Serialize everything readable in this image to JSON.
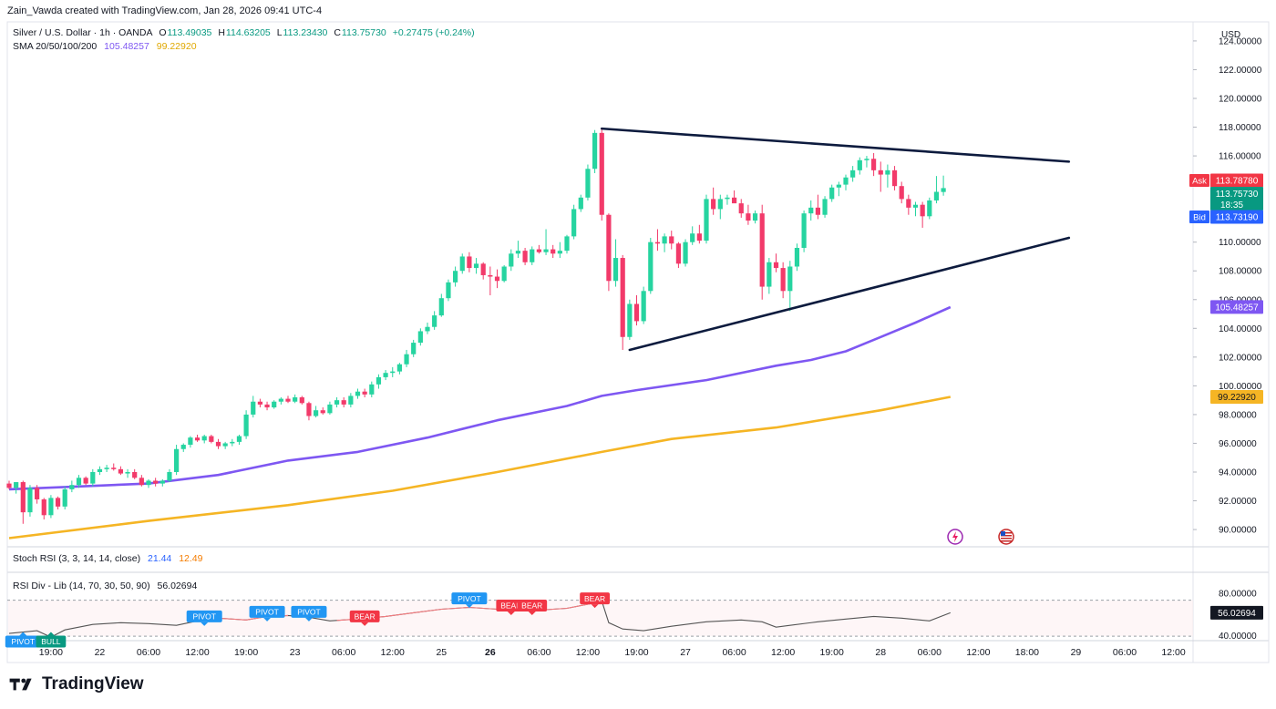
{
  "header": {
    "publisher": "Zain_Vawda created with TradingView.com, Jan 28, 2026 09:41 UTC-4"
  },
  "legend": {
    "symbol": "Silver / U.S. Dollar · 1h · OANDA",
    "open_label": "O",
    "open": "113.49035",
    "high_label": "H",
    "high": "114.63205",
    "low_label": "L",
    "low": "113.23430",
    "close_label": "C",
    "close": "113.75730",
    "change": "+0.27475 (+0.24%)",
    "sma_label": "SMA 20/50/100/200",
    "sma_a": "105.48257",
    "sma_b": "99.22920"
  },
  "currency": "USD",
  "price_tags": {
    "ask_label": "Ask",
    "ask": "113.78780",
    "last": "113.75730",
    "countdown": "18:35",
    "bid_label": "Bid",
    "bid": "113.73190",
    "sma_a": "105.48257",
    "sma_b": "99.22920"
  },
  "colors": {
    "up": "#089981",
    "up_fill": "#26d4a0",
    "down": "#f23645",
    "down_fill": "#f23a6a",
    "sma_a": "#7e57f2",
    "sma_b": "#f5b524",
    "trend": "#0d1b3e",
    "ask": "#f23645",
    "bid": "#2962ff",
    "last": "#089981",
    "pivot": "#2196f3",
    "bear": "#f23645",
    "bull": "#089981",
    "rsi": "#555555",
    "rsi_red": "#f77c80"
  },
  "stoch_rsi": {
    "label": "Stoch RSI (3, 3, 14, 14, close)",
    "k": "21.44",
    "d": "12.49"
  },
  "rsi_div": {
    "label": "RSI Div - Lib (14, 70, 30, 50, 90)",
    "value": "56.02694",
    "axis_upper": "80.00000",
    "axis_lower": "40.00000",
    "pivot_label": "PIVOT",
    "bear_label": "BEAR",
    "bull_label": "BULL"
  },
  "brand": "TradingView",
  "chart_data": {
    "type": "candlestick",
    "title": "Silver / U.S. Dollar · 1h · OANDA",
    "ylim": [
      88.8,
      125.2
    ],
    "y_ticks": [
      "90.00000",
      "92.00000",
      "94.00000",
      "96.00000",
      "98.00000",
      "100.00000",
      "102.00000",
      "104.00000",
      "106.00000",
      "108.00000",
      "110.00000",
      "112.00000",
      "114.00000",
      "116.00000",
      "118.00000",
      "120.00000",
      "122.00000",
      "124.00000"
    ],
    "x_ticks": [
      {
        "label": "19:00",
        "i": 6,
        "bold": false
      },
      {
        "label": "22",
        "i": 13,
        "bold": false
      },
      {
        "label": "06:00",
        "i": 20,
        "bold": false
      },
      {
        "label": "12:00",
        "i": 27,
        "bold": false
      },
      {
        "label": "19:00",
        "i": 34,
        "bold": false
      },
      {
        "label": "23",
        "i": 41,
        "bold": false
      },
      {
        "label": "06:00",
        "i": 48,
        "bold": false
      },
      {
        "label": "12:00",
        "i": 55,
        "bold": false
      },
      {
        "label": "25",
        "i": 62,
        "bold": false
      },
      {
        "label": "26",
        "i": 69,
        "bold": true
      },
      {
        "label": "06:00",
        "i": 76,
        "bold": false
      },
      {
        "label": "12:00",
        "i": 83,
        "bold": false
      },
      {
        "label": "19:00",
        "i": 90,
        "bold": false
      },
      {
        "label": "27",
        "i": 97,
        "bold": false
      },
      {
        "label": "06:00",
        "i": 104,
        "bold": false
      },
      {
        "label": "12:00",
        "i": 111,
        "bold": false
      },
      {
        "label": "19:00",
        "i": 118,
        "bold": false
      },
      {
        "label": "28",
        "i": 125,
        "bold": false
      },
      {
        "label": "06:00",
        "i": 132,
        "bold": false
      },
      {
        "label": "12:00",
        "i": 139,
        "bold": false
      },
      {
        "label": "18:00",
        "i": 146,
        "bold": false
      },
      {
        "label": "29",
        "i": 153,
        "bold": false
      },
      {
        "label": "06:00",
        "i": 160,
        "bold": false
      },
      {
        "label": "12:00",
        "i": 167,
        "bold": false
      }
    ],
    "candles": [
      [
        93.2,
        93.4,
        92.8,
        92.9
      ],
      [
        92.9,
        93.3,
        92.5,
        93.3
      ],
      [
        93.3,
        93.4,
        90.4,
        91.2
      ],
      [
        91.2,
        93.1,
        90.9,
        92.9
      ],
      [
        92.9,
        93.1,
        91.8,
        92.1
      ],
      [
        92.1,
        92.2,
        90.7,
        91.0
      ],
      [
        91.0,
        92.4,
        90.8,
        92.2
      ],
      [
        92.2,
        92.3,
        91.4,
        91.6
      ],
      [
        91.6,
        93.0,
        91.4,
        92.8
      ],
      [
        92.8,
        93.4,
        92.6,
        93.1
      ],
      [
        93.1,
        93.8,
        92.9,
        93.6
      ],
      [
        93.6,
        93.7,
        93.1,
        93.2
      ],
      [
        93.2,
        94.2,
        93.0,
        94.0
      ],
      [
        94.0,
        94.4,
        93.8,
        94.2
      ],
      [
        94.2,
        94.5,
        94.0,
        94.3
      ],
      [
        94.3,
        94.6,
        94.1,
        94.2
      ],
      [
        94.2,
        94.4,
        93.8,
        93.9
      ],
      [
        93.9,
        94.2,
        93.6,
        94.0
      ],
      [
        94.0,
        94.2,
        93.5,
        93.6
      ],
      [
        93.6,
        93.8,
        93.0,
        93.1
      ],
      [
        93.1,
        93.5,
        92.9,
        93.4
      ],
      [
        93.4,
        93.6,
        93.0,
        93.2
      ],
      [
        93.2,
        93.5,
        93.0,
        93.4
      ],
      [
        93.4,
        94.2,
        93.3,
        94.0
      ],
      [
        94.0,
        95.9,
        93.8,
        95.6
      ],
      [
        95.6,
        96.0,
        95.4,
        95.9
      ],
      [
        95.9,
        96.5,
        95.7,
        96.4
      ],
      [
        96.4,
        96.6,
        96.1,
        96.2
      ],
      [
        96.2,
        96.6,
        96.0,
        96.5
      ],
      [
        96.5,
        96.6,
        96.0,
        96.1
      ],
      [
        96.1,
        96.3,
        95.6,
        95.8
      ],
      [
        95.8,
        96.1,
        95.6,
        96.0
      ],
      [
        96.0,
        96.3,
        95.8,
        96.1
      ],
      [
        96.1,
        96.6,
        95.9,
        96.5
      ],
      [
        96.5,
        98.3,
        96.3,
        98.0
      ],
      [
        98.0,
        99.3,
        97.8,
        98.9
      ],
      [
        98.9,
        99.1,
        98.5,
        98.7
      ],
      [
        98.7,
        98.9,
        98.3,
        98.5
      ],
      [
        98.5,
        99.0,
        98.4,
        98.9
      ],
      [
        98.9,
        99.2,
        98.7,
        99.1
      ],
      [
        99.1,
        99.3,
        98.8,
        98.9
      ],
      [
        98.9,
        99.4,
        98.8,
        99.2
      ],
      [
        99.2,
        99.3,
        98.7,
        98.8
      ],
      [
        98.8,
        98.9,
        97.6,
        97.9
      ],
      [
        97.9,
        98.6,
        97.8,
        98.3
      ],
      [
        98.3,
        98.5,
        98.0,
        98.1
      ],
      [
        98.1,
        98.9,
        98.0,
        98.7
      ],
      [
        98.7,
        99.2,
        98.5,
        99.0
      ],
      [
        99.0,
        99.2,
        98.5,
        98.7
      ],
      [
        98.7,
        99.5,
        98.5,
        99.3
      ],
      [
        99.3,
        99.8,
        99.1,
        99.6
      ],
      [
        99.6,
        99.8,
        99.2,
        99.4
      ],
      [
        99.4,
        100.3,
        99.2,
        100.1
      ],
      [
        100.1,
        100.8,
        99.8,
        100.6
      ],
      [
        100.6,
        101.1,
        100.4,
        100.9
      ],
      [
        100.9,
        101.3,
        100.6,
        101.0
      ],
      [
        101.0,
        101.6,
        100.8,
        101.5
      ],
      [
        101.5,
        102.5,
        101.3,
        102.2
      ],
      [
        102.2,
        103.2,
        102.0,
        103.0
      ],
      [
        103.0,
        104.0,
        102.8,
        103.8
      ],
      [
        103.8,
        104.4,
        103.6,
        104.1
      ],
      [
        104.1,
        105.2,
        103.9,
        104.9
      ],
      [
        104.9,
        106.4,
        104.8,
        106.1
      ],
      [
        106.1,
        107.4,
        105.9,
        107.2
      ],
      [
        107.2,
        108.3,
        106.9,
        108.0
      ],
      [
        108.0,
        109.2,
        107.8,
        109.0
      ],
      [
        109.0,
        109.3,
        107.9,
        108.2
      ],
      [
        108.2,
        108.9,
        107.8,
        108.5
      ],
      [
        108.5,
        108.6,
        107.4,
        107.7
      ],
      [
        107.7,
        108.3,
        106.3,
        107.6
      ],
      [
        107.6,
        108.1,
        106.8,
        107.3
      ],
      [
        107.3,
        108.4,
        107.2,
        108.3
      ],
      [
        108.3,
        109.5,
        108.0,
        109.2
      ],
      [
        109.2,
        110.1,
        108.9,
        109.4
      ],
      [
        109.4,
        109.6,
        108.4,
        108.6
      ],
      [
        108.6,
        109.7,
        108.4,
        109.5
      ],
      [
        109.5,
        109.8,
        109.2,
        109.3
      ],
      [
        109.3,
        110.9,
        109.1,
        109.5
      ],
      [
        109.5,
        109.8,
        108.9,
        109.2
      ],
      [
        109.2,
        110.0,
        108.9,
        109.4
      ],
      [
        109.4,
        110.5,
        109.2,
        110.4
      ],
      [
        110.4,
        112.6,
        110.2,
        112.3
      ],
      [
        112.3,
        113.3,
        112.1,
        113.1
      ],
      [
        113.1,
        115.4,
        112.9,
        115.1
      ],
      [
        115.1,
        117.8,
        114.8,
        117.6
      ],
      [
        117.6,
        117.9,
        111.5,
        111.9
      ],
      [
        111.9,
        112.0,
        106.6,
        107.3
      ],
      [
        107.3,
        110.2,
        106.9,
        108.9
      ],
      [
        108.9,
        109.1,
        102.5,
        103.4
      ],
      [
        103.4,
        106.0,
        103.2,
        105.7
      ],
      [
        105.7,
        106.3,
        104.2,
        104.5
      ],
      [
        104.5,
        106.9,
        104.3,
        106.6
      ],
      [
        106.6,
        110.3,
        106.4,
        110.0
      ],
      [
        110.0,
        110.9,
        109.4,
        109.9
      ],
      [
        109.9,
        110.6,
        109.3,
        110.4
      ],
      [
        110.4,
        110.8,
        109.5,
        109.9
      ],
      [
        109.9,
        110.0,
        108.2,
        108.5
      ],
      [
        108.5,
        110.2,
        108.3,
        110.0
      ],
      [
        110.0,
        111.1,
        109.8,
        110.6
      ],
      [
        110.6,
        111.2,
        109.9,
        110.1
      ],
      [
        110.1,
        113.3,
        109.9,
        113.0
      ],
      [
        113.0,
        113.8,
        111.9,
        112.3
      ],
      [
        112.3,
        113.3,
        111.6,
        113.0
      ],
      [
        113.0,
        113.3,
        112.6,
        113.1
      ],
      [
        113.1,
        113.6,
        112.8,
        112.7
      ],
      [
        112.7,
        113.0,
        111.7,
        112.0
      ],
      [
        112.0,
        112.6,
        111.2,
        111.5
      ],
      [
        111.5,
        112.2,
        111.3,
        112.0
      ],
      [
        112.0,
        112.6,
        106.0,
        106.9
      ],
      [
        106.9,
        108.9,
        106.4,
        108.6
      ],
      [
        108.6,
        109.2,
        107.9,
        108.2
      ],
      [
        108.2,
        108.6,
        106.1,
        106.6
      ],
      [
        106.6,
        108.7,
        105.2,
        108.3
      ],
      [
        108.3,
        109.9,
        108.0,
        109.6
      ],
      [
        109.6,
        112.2,
        109.3,
        112.0
      ],
      [
        112.0,
        112.9,
        111.5,
        112.4
      ],
      [
        112.4,
        113.3,
        111.6,
        111.9
      ],
      [
        111.9,
        113.2,
        111.7,
        113.0
      ],
      [
        113.0,
        114.0,
        112.8,
        113.8
      ],
      [
        113.8,
        114.2,
        113.2,
        114.0
      ],
      [
        114.0,
        114.7,
        113.6,
        114.5
      ],
      [
        114.5,
        115.3,
        114.2,
        115.0
      ],
      [
        115.0,
        115.9,
        114.7,
        115.7
      ],
      [
        115.7,
        116.0,
        115.2,
        115.8
      ],
      [
        115.8,
        116.2,
        114.6,
        115.0
      ],
      [
        115.0,
        115.6,
        113.5,
        114.7
      ],
      [
        114.7,
        115.4,
        113.8,
        115.0
      ],
      [
        115.0,
        115.3,
        113.6,
        113.9
      ],
      [
        113.9,
        114.2,
        112.7,
        113.0
      ],
      [
        113.0,
        113.3,
        111.9,
        112.4
      ],
      [
        112.4,
        112.8,
        111.8,
        112.6
      ],
      [
        112.6,
        112.8,
        111.0,
        111.8
      ],
      [
        111.8,
        113.1,
        111.6,
        112.9
      ],
      [
        112.9,
        114.6,
        112.7,
        113.5
      ],
      [
        113.49,
        114.63,
        113.23,
        113.76
      ]
    ],
    "sma_a_points": [
      [
        0,
        92.8
      ],
      [
        10,
        93.0
      ],
      [
        20,
        93.2
      ],
      [
        30,
        93.8
      ],
      [
        40,
        94.8
      ],
      [
        50,
        95.4
      ],
      [
        60,
        96.4
      ],
      [
        70,
        97.6
      ],
      [
        80,
        98.6
      ],
      [
        85,
        99.3
      ],
      [
        90,
        99.7
      ],
      [
        100,
        100.4
      ],
      [
        110,
        101.4
      ],
      [
        115,
        101.8
      ],
      [
        120,
        102.4
      ],
      [
        125,
        103.4
      ],
      [
        130,
        104.4
      ],
      [
        135,
        105.48
      ]
    ],
    "sma_b_points": [
      [
        0,
        89.4
      ],
      [
        20,
        90.6
      ],
      [
        40,
        91.7
      ],
      [
        55,
        92.7
      ],
      [
        70,
        94.0
      ],
      [
        85,
        95.4
      ],
      [
        95,
        96.3
      ],
      [
        110,
        97.1
      ],
      [
        125,
        98.3
      ],
      [
        135,
        99.23
      ]
    ],
    "trendlines": [
      {
        "from": [
          85,
          117.9
        ],
        "to": [
          152,
          115.6
        ]
      },
      {
        "from": [
          89,
          102.5
        ],
        "to": [
          152,
          110.3
        ]
      }
    ]
  },
  "rsi_data": {
    "ylim": [
      25,
      100
    ],
    "upper": 70,
    "lower": 30,
    "points": [
      [
        0,
        33
      ],
      [
        4,
        36
      ],
      [
        6,
        29
      ],
      [
        8,
        37
      ],
      [
        12,
        43
      ],
      [
        16,
        45
      ],
      [
        20,
        44
      ],
      [
        24,
        42
      ],
      [
        27,
        47
      ],
      [
        30,
        50
      ],
      [
        34,
        48
      ],
      [
        37,
        52
      ],
      [
        40,
        53
      ],
      [
        43,
        51
      ],
      [
        46,
        47
      ],
      [
        50,
        49
      ],
      [
        54,
        52
      ],
      [
        58,
        56
      ],
      [
        62,
        60
      ],
      [
        66,
        62
      ],
      [
        70,
        60
      ],
      [
        73,
        62
      ],
      [
        76,
        59
      ],
      [
        80,
        61
      ],
      [
        84,
        67
      ],
      [
        85,
        69
      ],
      [
        86,
        45
      ],
      [
        88,
        38
      ],
      [
        91,
        36
      ],
      [
        95,
        41
      ],
      [
        100,
        46
      ],
      [
        105,
        48
      ],
      [
        108,
        46
      ],
      [
        110,
        40
      ],
      [
        112,
        42
      ],
      [
        116,
        46
      ],
      [
        120,
        49
      ],
      [
        124,
        52
      ],
      [
        128,
        50
      ],
      [
        132,
        47
      ],
      [
        135,
        56
      ]
    ],
    "red_segments": [
      [
        27,
        40
      ],
      [
        47,
        85
      ]
    ],
    "markers": [
      {
        "kind": "pivot",
        "i": 2,
        "v": 24,
        "below": true
      },
      {
        "kind": "bull",
        "i": 6,
        "v": 24,
        "below": true
      },
      {
        "kind": "pivot",
        "i": 28,
        "v": 52,
        "below": false
      },
      {
        "kind": "pivot",
        "i": 37,
        "v": 57,
        "below": false
      },
      {
        "kind": "pivot",
        "i": 43,
        "v": 57,
        "below": false
      },
      {
        "kind": "bear",
        "i": 51,
        "v": 52,
        "below": false
      },
      {
        "kind": "pivot",
        "i": 66,
        "v": 72,
        "below": false
      },
      {
        "kind": "bear",
        "i": 72,
        "v": 64,
        "below": false
      },
      {
        "kind": "bear",
        "i": 75,
        "v": 64,
        "below": false
      },
      {
        "kind": "bear",
        "i": 84,
        "v": 72,
        "below": false
      }
    ]
  }
}
